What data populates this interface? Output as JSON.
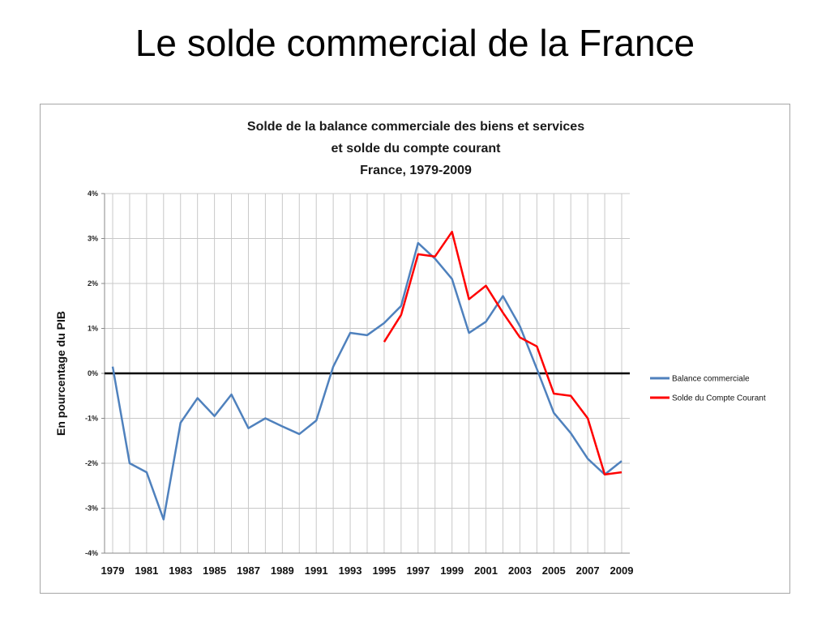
{
  "slide": {
    "title": "Le solde commercial de la France"
  },
  "chart_data": {
    "type": "line",
    "title_lines": [
      "Solde de la balance commerciale des biens et services",
      "et solde du compte courant",
      "France, 1979-2009"
    ],
    "xlabel": "",
    "ylabel": "En pourcentage du PIB",
    "x": [
      1979,
      1980,
      1981,
      1982,
      1983,
      1984,
      1985,
      1986,
      1987,
      1988,
      1989,
      1990,
      1991,
      1992,
      1993,
      1994,
      1995,
      1996,
      1997,
      1998,
      1999,
      2000,
      2001,
      2002,
      2003,
      2004,
      2005,
      2006,
      2007,
      2008,
      2009
    ],
    "x_tick_labels": [
      "1979",
      "1981",
      "1983",
      "1985",
      "1987",
      "1989",
      "1991",
      "1993",
      "1995",
      "1997",
      "1999",
      "2001",
      "2003",
      "2005",
      "2007",
      "2009"
    ],
    "y_tick_labels": [
      "4%",
      "3%",
      "2%",
      "1%",
      "0%",
      "-1%",
      "-2%",
      "-3%",
      "-4%"
    ],
    "ylim": [
      -4,
      4
    ],
    "y_tick_values": [
      4,
      3,
      2,
      1,
      0,
      -1,
      -2,
      -3,
      -4
    ],
    "grid": true,
    "legend_position": "right",
    "series": [
      {
        "name": "Balance commerciale",
        "color": "#4f81bd",
        "values": [
          0.15,
          -2.0,
          -2.2,
          -3.25,
          -1.1,
          -0.55,
          -0.95,
          -0.47,
          -1.22,
          -1.0,
          -1.18,
          -1.35,
          -1.05,
          0.15,
          0.9,
          0.85,
          1.12,
          1.5,
          2.9,
          2.55,
          2.1,
          0.9,
          1.15,
          1.72,
          1.05,
          0.1,
          -0.88,
          -1.33,
          -1.9,
          -2.25,
          -1.95
        ]
      },
      {
        "name": "Solde du Compte Courant",
        "color": "#ff0000",
        "values": [
          null,
          null,
          null,
          null,
          null,
          null,
          null,
          null,
          null,
          null,
          null,
          null,
          null,
          null,
          null,
          null,
          0.7,
          1.3,
          2.65,
          2.6,
          3.15,
          1.65,
          1.95,
          1.35,
          0.8,
          0.6,
          -0.45,
          -0.5,
          -1.0,
          -2.25,
          -2.2
        ]
      }
    ]
  }
}
